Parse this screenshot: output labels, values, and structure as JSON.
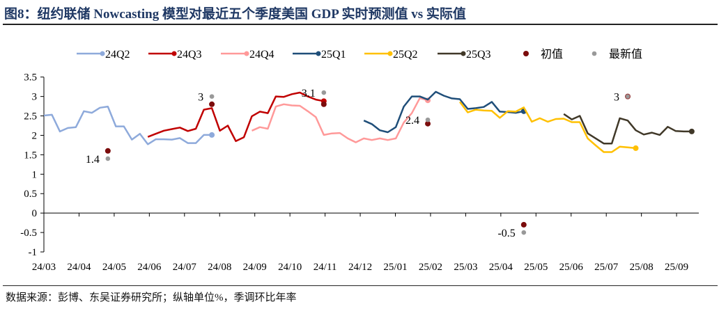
{
  "title": "图8：纽约联储 Nowcasting 模型对最近五个季度美国 GDP 实时预测值 vs 实际值",
  "source": "数据来源：彭博、东吴证券研究所；纵轴单位%，季调环比年率",
  "chart_data": {
    "type": "line",
    "title": "纽约联储 Nowcasting 模型对最近五个季度美国 GDP 实时预测值 vs 实际值",
    "xlabel": "",
    "ylabel": "%",
    "ylim": [
      -1,
      3.5
    ],
    "yticks": [
      3.5,
      3,
      2.5,
      2,
      1.5,
      1,
      0.5,
      0,
      -0.5,
      -1
    ],
    "ytick_labels": [
      "3.5",
      "3",
      "2.5",
      "2",
      "1.5",
      "1",
      "0.5",
      "0",
      "-0.5",
      "-1"
    ],
    "xlim": [
      0,
      82
    ],
    "xtick_labels": [
      "24/03",
      "24/04",
      "24/05",
      "24/06",
      "24/07",
      "24/08",
      "24/09",
      "24/10",
      "24/11",
      "24/12",
      "25/01",
      "25/02",
      "25/03",
      "25/04",
      "25/05",
      "25/06",
      "25/07",
      "25/08",
      "25/09"
    ],
    "legend_position": "top",
    "series": [
      {
        "name": "24Q2",
        "color": "#8eaadb",
        "start": 0,
        "values": [
          2.51,
          2.53,
          2.1,
          2.19,
          2.21,
          2.62,
          2.58,
          2.71,
          2.74,
          2.23,
          2.23,
          1.89,
          2.04,
          1.77,
          1.9,
          1.9,
          1.89,
          1.93,
          1.8,
          1.8,
          2.01,
          2.01
        ]
      },
      {
        "name": "24Q3",
        "color": "#c00000",
        "start": 13,
        "values": [
          1.96,
          2.04,
          2.12,
          2.16,
          2.2,
          2.11,
          2.17,
          2.66,
          2.7,
          2.12,
          2.25,
          1.85,
          1.95,
          2.49,
          2.61,
          2.57,
          3.0,
          2.99,
          3.06,
          3.1,
          3.0,
          2.92,
          2.88
        ]
      },
      {
        "name": "24Q4",
        "color": "#ff9999",
        "start": 26,
        "values": [
          2.12,
          2.21,
          2.17,
          2.74,
          2.8,
          2.77,
          2.76,
          2.62,
          2.47,
          2.01,
          2.05,
          2.06,
          1.92,
          1.82,
          1.92,
          1.88,
          1.92,
          1.88,
          1.92,
          2.33,
          2.57,
          2.96,
          2.9
        ]
      },
      {
        "name": "25Q1",
        "color": "#1f4e79",
        "start": 40,
        "values": [
          2.38,
          2.29,
          2.13,
          2.08,
          2.21,
          2.74,
          3.0,
          3.0,
          2.92,
          3.12,
          3.02,
          2.95,
          2.93,
          2.68,
          2.7,
          2.73,
          2.86,
          2.61,
          2.6,
          2.58,
          2.62
        ]
      },
      {
        "name": "25Q2",
        "color": "#ffc000",
        "start": 52,
        "values": [
          2.86,
          2.59,
          2.66,
          2.64,
          2.63,
          2.45,
          2.62,
          2.61,
          2.72,
          2.35,
          2.44,
          2.35,
          2.42,
          2.43,
          2.34,
          2.34,
          1.92,
          1.74,
          1.57,
          1.57,
          1.71,
          1.69,
          1.67
        ]
      },
      {
        "name": "25Q3",
        "color": "#403828",
        "start": 65,
        "values": [
          2.55,
          2.41,
          2.5,
          2.05,
          1.92,
          1.79,
          1.79,
          2.44,
          2.38,
          2.13,
          2.02,
          2.07,
          2.01,
          2.22,
          2.11,
          2.1,
          2.1
        ]
      }
    ],
    "points": [
      {
        "name": "初值",
        "color": "#7b0c0c",
        "data": [
          {
            "x": 8,
            "y": 1.6
          },
          {
            "x": 21,
            "y": 2.8
          },
          {
            "x": 35,
            "y": 2.8
          },
          {
            "x": 48,
            "y": 2.3
          },
          {
            "x": 60,
            "y": -0.3
          },
          {
            "x": 73,
            "y": 3.0
          }
        ]
      },
      {
        "name": "最新值",
        "color": "#999999",
        "data": [
          {
            "x": 8,
            "y": 1.4
          },
          {
            "x": 21,
            "y": 3.0
          },
          {
            "x": 35,
            "y": 3.1
          },
          {
            "x": 48,
            "y": 2.4
          },
          {
            "x": 60,
            "y": -0.5
          },
          {
            "x": 73,
            "y": 3.0
          }
        ]
      }
    ],
    "annotations": [
      {
        "text": "1.4",
        "x": 8,
        "y": 1.4,
        "side": "left"
      },
      {
        "text": "3",
        "x": 21,
        "y": 3.0,
        "side": "left"
      },
      {
        "text": "3.1",
        "x": 35,
        "y": 3.1,
        "side": "left"
      },
      {
        "text": "2.4",
        "x": 48,
        "y": 2.4,
        "side": "left"
      },
      {
        "text": "-0.5",
        "x": 60,
        "y": -0.5,
        "side": "left"
      },
      {
        "text": "3",
        "x": 73,
        "y": 3.0,
        "side": "left"
      }
    ]
  }
}
